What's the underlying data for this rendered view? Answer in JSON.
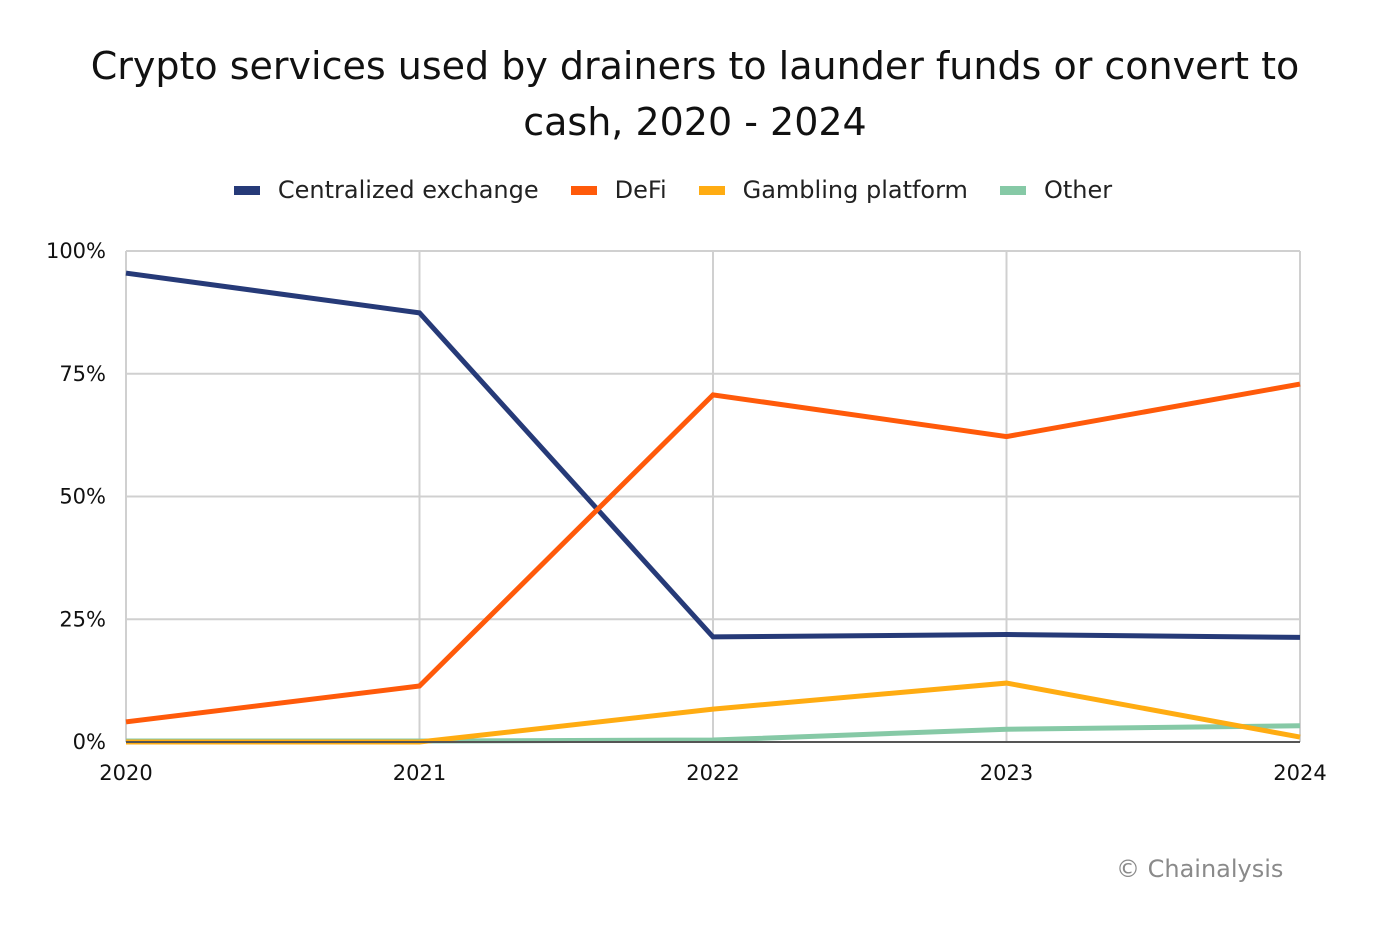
{
  "chart_data": {
    "type": "line",
    "title": "Crypto services used by drainers to launder funds or convert to cash, 2020 - 2024",
    "title_lines": [
      "Crypto services used by drainers to launder funds or convert to",
      "cash, 2020 - 2024"
    ],
    "xlabel": "",
    "ylabel": "",
    "x": [
      "2020",
      "2021",
      "2022",
      "2023",
      "2024"
    ],
    "ylim": [
      0,
      100
    ],
    "yticks": [
      0,
      25,
      50,
      75,
      100
    ],
    "ytick_labels": [
      "0%",
      "25%",
      "50%",
      "75%",
      "100%"
    ],
    "grid": true,
    "legend_position": "top-center",
    "series": [
      {
        "name": "Centralized exchange",
        "color": "#263a78",
        "values": [
          95.5,
          87.4,
          21.4,
          21.9,
          21.3
        ]
      },
      {
        "name": "DeFi",
        "color": "#ff5a0a",
        "values": [
          4.1,
          11.4,
          70.7,
          62.2,
          72.9
        ]
      },
      {
        "name": "Gambling platform",
        "color": "#ffac12",
        "values": [
          0.0,
          0.0,
          6.7,
          12.0,
          1.0
        ]
      },
      {
        "name": "Other",
        "color": "#86c9a6",
        "values": [
          0.2,
          0.2,
          0.4,
          2.6,
          3.3
        ]
      }
    ]
  },
  "credit": "© Chainalysis"
}
